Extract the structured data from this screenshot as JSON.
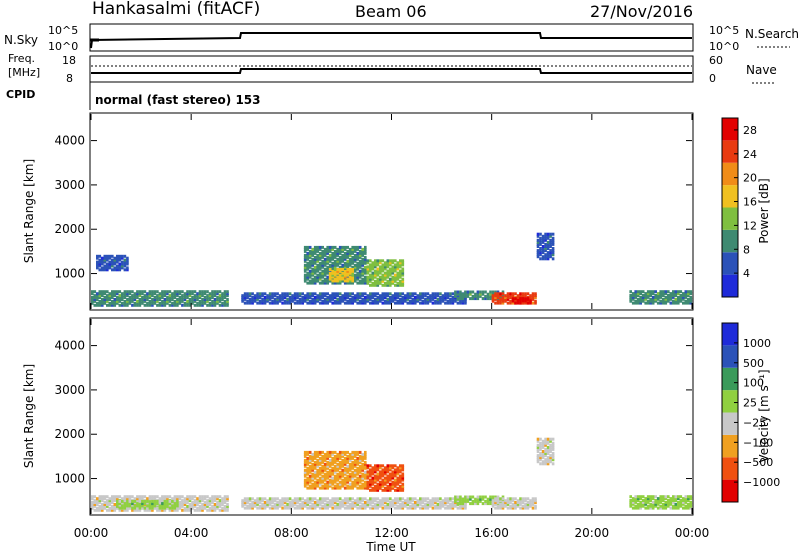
{
  "header": {
    "station": "Hankasalmi (fitACF)",
    "beam": "Beam 06",
    "date": "27/Nov/2016"
  },
  "top_panel": {
    "left_label": "N.Sky",
    "right_label": "N.Search",
    "left_ticks": [
      "10^5",
      "10^0"
    ],
    "right_ticks": [
      "10^5",
      "10^0"
    ]
  },
  "freq_panel": {
    "left_label": "Freq.",
    "left_unit": "[MHz]",
    "left_ticks": [
      "18",
      "8"
    ],
    "right_label": "Nave",
    "right_ticks": [
      "60",
      "0"
    ]
  },
  "cpid": {
    "label": "CPID",
    "text": "normal (fast stereo) 153"
  },
  "colors": {
    "power": [
      "#1f2bd9",
      "#2b52b8",
      "#3f8a72",
      "#7fbf40",
      "#f0c020",
      "#f08c18",
      "#e83a10",
      "#e20000"
    ],
    "velocity": [
      "#e20000",
      "#f05010",
      "#f0a020",
      "#c8c8c8",
      "#90d040",
      "#3a9a5a",
      "#2b52b8",
      "#1f2bd9"
    ]
  },
  "chart_data": [
    {
      "type": "heatmap",
      "name": "power",
      "ylabel": "Slant Range [km]",
      "xlabel": "",
      "yticks": [
        "1000",
        "2000",
        "3000",
        "4000"
      ],
      "ylim": [
        200,
        4600
      ],
      "colorbar": {
        "label": "Power [dB]",
        "ticks": [
          "4",
          "8",
          "12",
          "16",
          "20",
          "24",
          "28"
        ],
        "range": [
          0,
          30
        ]
      },
      "regions": [
        {
          "t0": 0.0,
          "t1": 5.5,
          "r0": 250,
          "r1": 600,
          "level": 2
        },
        {
          "t0": 6.0,
          "t1": 15.0,
          "r0": 300,
          "r1": 550,
          "level": 1
        },
        {
          "t0": 0.2,
          "t1": 1.5,
          "r0": 1050,
          "r1": 1400,
          "level": 1
        },
        {
          "t0": 8.5,
          "t1": 11.0,
          "r0": 750,
          "r1": 1600,
          "level": 2
        },
        {
          "t0": 9.5,
          "t1": 10.5,
          "r0": 800,
          "r1": 1100,
          "level": 4
        },
        {
          "t0": 11.0,
          "t1": 12.5,
          "r0": 700,
          "r1": 1300,
          "level": 3
        },
        {
          "t0": 14.5,
          "t1": 16.5,
          "r0": 400,
          "r1": 600,
          "level": 2
        },
        {
          "t0": 16.0,
          "t1": 17.8,
          "r0": 300,
          "r1": 550,
          "level": 6
        },
        {
          "t0": 16.8,
          "t1": 17.6,
          "r0": 300,
          "r1": 450,
          "level": 7
        },
        {
          "t0": 17.8,
          "t1": 18.5,
          "r0": 1300,
          "r1": 1900,
          "level": 1
        },
        {
          "t0": 21.5,
          "t1": 24.0,
          "r0": 300,
          "r1": 600,
          "level": 2
        }
      ]
    },
    {
      "type": "heatmap",
      "name": "velocity",
      "ylabel": "Slant Range [km]",
      "xlabel": "Time UT",
      "xticks": [
        "00:00",
        "04:00",
        "08:00",
        "12:00",
        "16:00",
        "20:00",
        "00:00"
      ],
      "xlim": [
        0,
        24
      ],
      "yticks": [
        "1000",
        "2000",
        "3000",
        "4000"
      ],
      "ylim": [
        200,
        4600
      ],
      "colorbar": {
        "label": "Velocity [m s⁻¹]",
        "ticks": [
          "1000",
          "500",
          "100",
          "25",
          "−25",
          "−100",
          "−500",
          "−1000"
        ]
      },
      "regions": [
        {
          "t0": 0.0,
          "t1": 5.5,
          "r0": 250,
          "r1": 600,
          "level": 3
        },
        {
          "t0": 1.0,
          "t1": 3.5,
          "r0": 300,
          "r1": 500,
          "level": 4
        },
        {
          "t0": 6.0,
          "t1": 15.0,
          "r0": 300,
          "r1": 550,
          "level": 3
        },
        {
          "t0": 8.5,
          "t1": 11.0,
          "r0": 750,
          "r1": 1600,
          "level": 2
        },
        {
          "t0": 11.0,
          "t1": 12.5,
          "r0": 700,
          "r1": 1300,
          "level": 1
        },
        {
          "t0": 14.5,
          "t1": 16.5,
          "r0": 400,
          "r1": 600,
          "level": 4
        },
        {
          "t0": 16.0,
          "t1": 17.8,
          "r0": 300,
          "r1": 550,
          "level": 3
        },
        {
          "t0": 17.8,
          "t1": 18.5,
          "r0": 1300,
          "r1": 1900,
          "level": 3
        },
        {
          "t0": 21.5,
          "t1": 24.0,
          "r0": 300,
          "r1": 600,
          "level": 4
        }
      ]
    }
  ]
}
